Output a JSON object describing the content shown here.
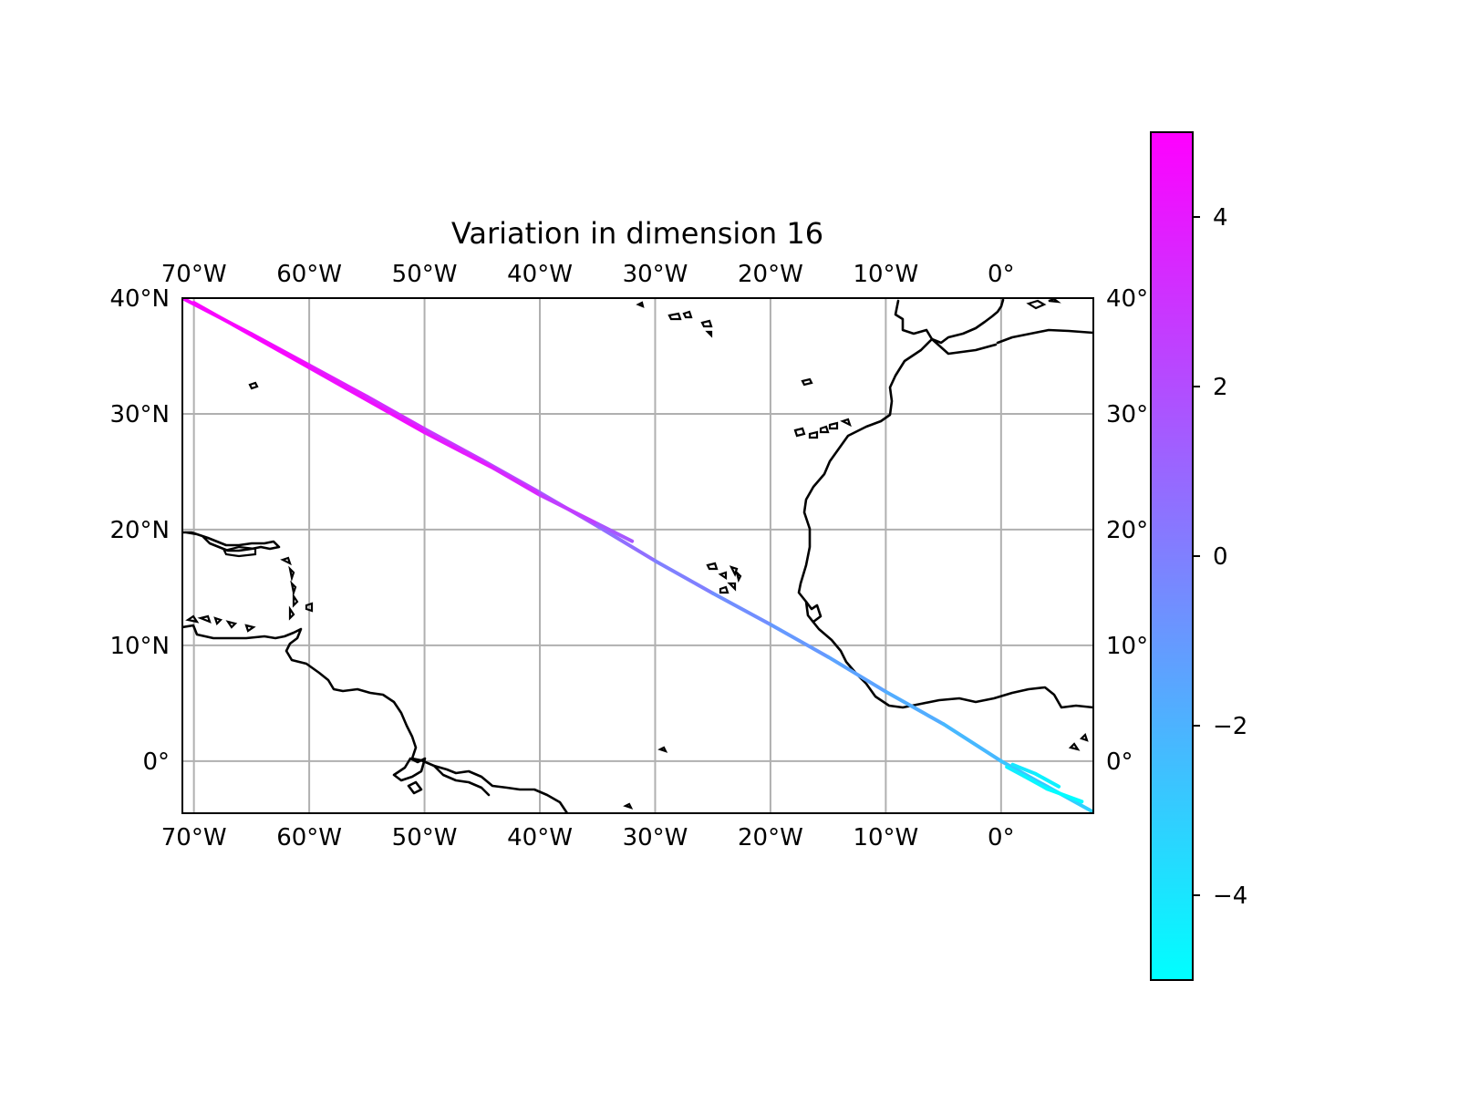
{
  "chart_data": {
    "type": "line",
    "title": "Variation in dimension 16",
    "projection": "PlateCarree",
    "lon_range": [
      -71,
      8
    ],
    "lat_range": [
      -4.5,
      40
    ],
    "lon_ticks": [
      -70,
      -60,
      -50,
      -40,
      -30,
      -20,
      -10,
      0
    ],
    "lat_ticks": [
      40,
      30,
      20,
      10,
      0
    ],
    "lon_tick_labels": [
      "70°W",
      "60°W",
      "50°W",
      "40°W",
      "30°W",
      "20°W",
      "10°W",
      "0°"
    ],
    "lat_tick_labels_left": [
      "40°N",
      "30°N",
      "20°N",
      "10°N",
      "0°"
    ],
    "lat_tick_labels_right": [
      "40°",
      "30°",
      "20°",
      "10°",
      "0°"
    ],
    "grid": true,
    "series": [
      {
        "lon": [
          -71,
          -65,
          -60,
          -55,
          -50,
          -45,
          -40,
          -35,
          -30,
          -25,
          -20,
          -15,
          -10,
          -5,
          0,
          4,
          8
        ],
        "lat": [
          40,
          36.9,
          34.2,
          31.5,
          28.7,
          26.0,
          23.2,
          20.3,
          17.3,
          14.5,
          11.8,
          9.0,
          6.0,
          3.2,
          0.0,
          -2.2,
          -4.4
        ],
        "value": [
          4.8,
          4.5,
          4.0,
          3.5,
          3.0,
          2.4,
          1.8,
          1.0,
          0.3,
          -0.3,
          -0.8,
          -1.2,
          -1.6,
          -2.0,
          -2.4,
          -3.0,
          -3.2
        ]
      },
      {
        "lon": [
          -70,
          -60,
          -50,
          -44,
          -40,
          -35,
          -32
        ],
        "lat": [
          39.6,
          34.0,
          28.4,
          25.3,
          23.0,
          20.5,
          19.0
        ],
        "value": [
          4.9,
          4.6,
          4.2,
          3.8,
          3.2,
          2.0,
          1.2
        ]
      },
      {
        "lon": [
          0.5,
          2,
          4,
          7
        ],
        "lat": [
          -0.5,
          -1.3,
          -2.4,
          -3.5
        ],
        "value": [
          -4.2,
          -4.5,
          -4.8,
          -5.0
        ]
      },
      {
        "lon": [
          1,
          3,
          5
        ],
        "lat": [
          -0.3,
          -1.1,
          -2.2
        ],
        "value": [
          -4.0,
          -4.3,
          -4.6
        ]
      }
    ],
    "colorbar": {
      "range": [
        -5,
        5
      ],
      "ticks": [
        4,
        2,
        0,
        -2,
        -4
      ],
      "tick_labels": [
        "4",
        "2",
        "0",
        "−2",
        "−4"
      ],
      "colormap": "cool",
      "color_low": "#00ffff",
      "color_high": "#ff00ff"
    }
  }
}
